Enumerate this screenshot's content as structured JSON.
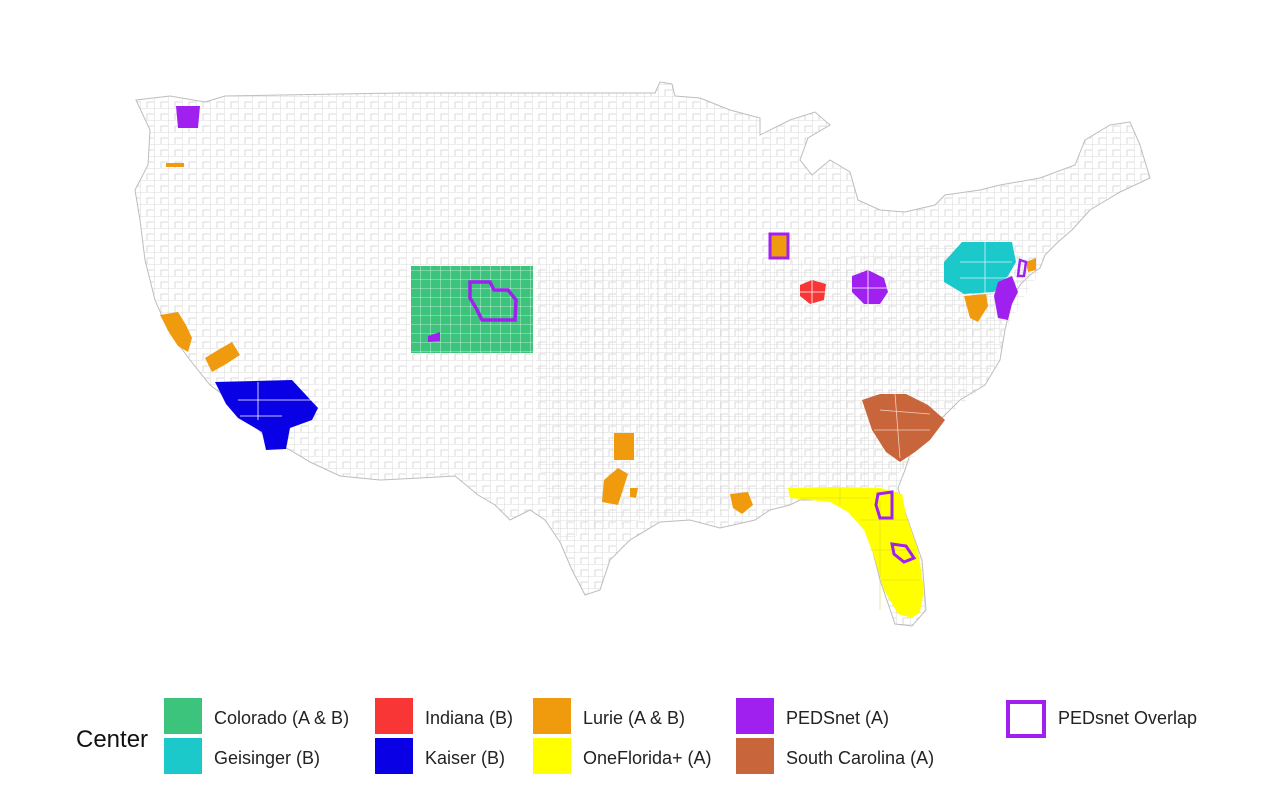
{
  "legend": {
    "title": "Center",
    "items": [
      {
        "label": "Colorado (A & B)",
        "color": "#3cc47c"
      },
      {
        "label": "Geisinger (B)",
        "color": "#1bc9cb"
      },
      {
        "label": "Indiana (B)",
        "color": "#f93636"
      },
      {
        "label": "Kaiser (B)",
        "color": "#0a00e6"
      },
      {
        "label": "Lurie (A & B)",
        "color": "#f09a0e"
      },
      {
        "label": "OneFlorida+ (A)",
        "color": "#ffff00"
      },
      {
        "label": "PEDSnet (A)",
        "color": "#a020f0"
      },
      {
        "label": "South Carolina (A)",
        "color": "#c8653a"
      },
      {
        "label": "PEDsnet Overlap",
        "color": "#a020f0",
        "style": "outline"
      }
    ]
  },
  "map": {
    "base_fill": "#ffffff",
    "border_color": "#cccccc"
  }
}
